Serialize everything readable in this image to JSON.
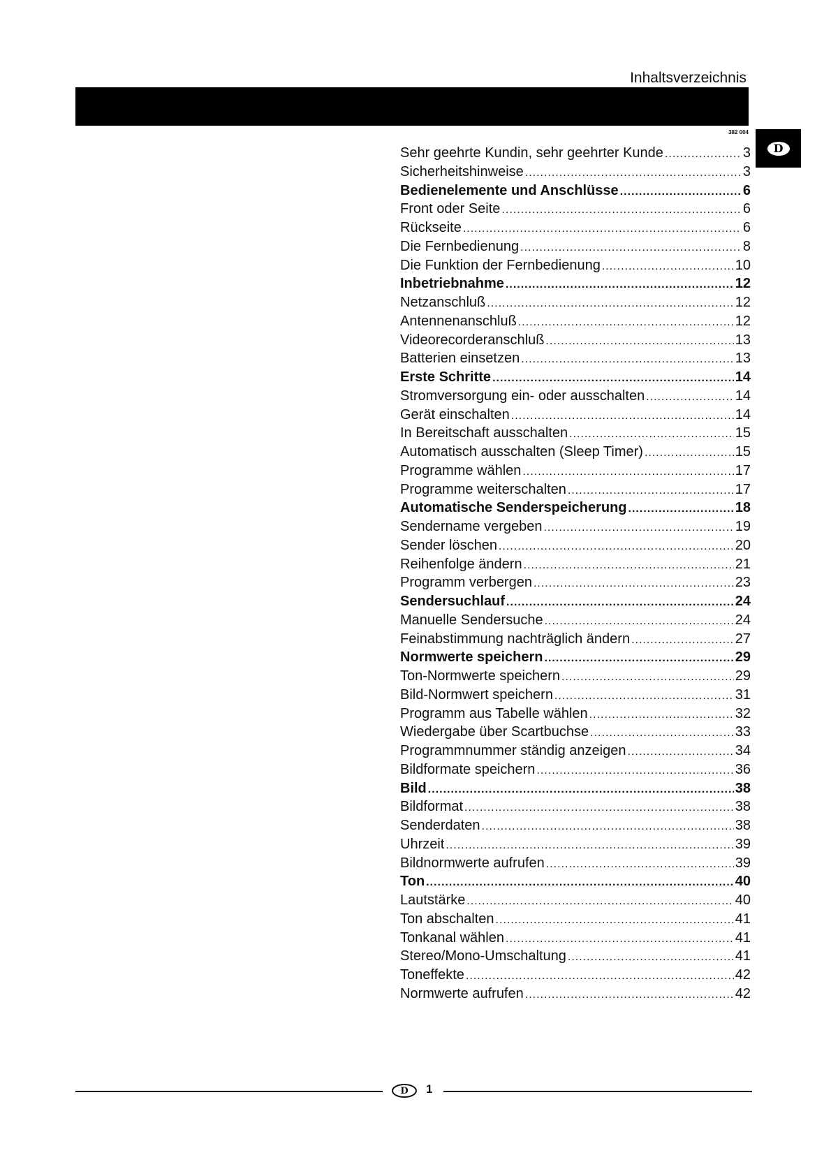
{
  "header": {
    "title": "Inhaltsverzeichnis",
    "code": "382 004",
    "language_badge": "D"
  },
  "toc": [
    {
      "label": "Sehr geehrte Kundin, sehr geehrter Kunde",
      "page": "3",
      "bold": false
    },
    {
      "label": "Sicherheitshinweise",
      "page": "3",
      "bold": false
    },
    {
      "label": "Bedienelemente und Anschlüsse",
      "page": "6",
      "bold": true
    },
    {
      "label": "Front oder Seite",
      "page": "6",
      "bold": false
    },
    {
      "label": "Rückseite",
      "page": "6",
      "bold": false
    },
    {
      "label": "Die Fernbedienung",
      "page": "8",
      "bold": false
    },
    {
      "label": "Die Funktion der Fernbedienung",
      "page": "10",
      "bold": false
    },
    {
      "label": "Inbetriebnahme",
      "page": "12",
      "bold": true
    },
    {
      "label": "Netzanschluß",
      "page": "12",
      "bold": false
    },
    {
      "label": "Antennenanschluß",
      "page": "12",
      "bold": false
    },
    {
      "label": "Videorecorderanschluß",
      "page": "13",
      "bold": false
    },
    {
      "label": "Batterien einsetzen",
      "page": "13",
      "bold": false
    },
    {
      "label": "Erste Schritte",
      "page": "14",
      "bold": true
    },
    {
      "label": "Stromversorgung ein- oder ausschalten",
      "page": "14",
      "bold": false
    },
    {
      "label": "Gerät einschalten",
      "page": "14",
      "bold": false
    },
    {
      "label": "In Bereitschaft ausschalten",
      "page": "15",
      "bold": false
    },
    {
      "label": "Automatisch ausschalten (Sleep Timer)",
      "page": "15",
      "bold": false
    },
    {
      "label": "Programme wählen",
      "page": "17",
      "bold": false
    },
    {
      "label": "Programme weiterschalten",
      "page": "17",
      "bold": false
    },
    {
      "label": "Automatische Senderspeicherung",
      "page": "18",
      "bold": true
    },
    {
      "label": "Sendername vergeben",
      "page": "19",
      "bold": false
    },
    {
      "label": "Sender löschen",
      "page": "20",
      "bold": false
    },
    {
      "label": "Reihenfolge ändern",
      "page": "21",
      "bold": false
    },
    {
      "label": "Programm verbergen",
      "page": "23",
      "bold": false
    },
    {
      "label": "Sendersuchlauf",
      "page": "24",
      "bold": true
    },
    {
      "label": "Manuelle Sendersuche",
      "page": "24",
      "bold": false
    },
    {
      "label": "Feinabstimmung nachträglich ändern",
      "page": "27",
      "bold": false
    },
    {
      "label": "Normwerte speichern",
      "page": "29",
      "bold": true
    },
    {
      "label": "Ton-Normwerte speichern",
      "page": "29",
      "bold": false
    },
    {
      "label": "Bild-Normwert speichern",
      "page": "31",
      "bold": false
    },
    {
      "label": "Programm aus Tabelle wählen",
      "page": "32",
      "bold": false
    },
    {
      "label": "Wiedergabe über Scartbuchse",
      "page": "33",
      "bold": false
    },
    {
      "label": "Programmnummer ständig anzeigen",
      "page": "34",
      "bold": false
    },
    {
      "label": "Bildformate speichern",
      "page": "36",
      "bold": false
    },
    {
      "label": "Bild",
      "page": "38",
      "bold": true
    },
    {
      "label": "Bildformat",
      "page": "38",
      "bold": false
    },
    {
      "label": "Senderdaten",
      "page": "38",
      "bold": false
    },
    {
      "label": "Uhrzeit",
      "page": "39",
      "bold": false
    },
    {
      "label": "Bildnormwerte aufrufen",
      "page": "39",
      "bold": false
    },
    {
      "label": "Ton",
      "page": "40",
      "bold": true
    },
    {
      "label": "Lautstärke",
      "page": "40",
      "bold": false
    },
    {
      "label": "Ton abschalten",
      "page": "41",
      "bold": false
    },
    {
      "label": "Tonkanal wählen",
      "page": "41",
      "bold": false
    },
    {
      "label": "Stereo/Mono-Umschaltung",
      "page": "41",
      "bold": false
    },
    {
      "label": "Toneffekte",
      "page": "42",
      "bold": false
    },
    {
      "label": "Normwerte aufrufen",
      "page": "42",
      "bold": false
    }
  ],
  "footer": {
    "badge": "D",
    "page_number": "1"
  }
}
